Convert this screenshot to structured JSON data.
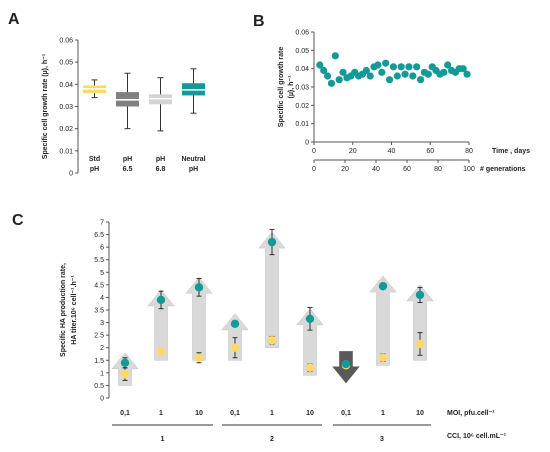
{
  "panel_labels": {
    "a": "A",
    "b": "B",
    "c": "C"
  },
  "chart_data": [
    {
      "type": "box",
      "panel": "A",
      "ylabel": "Specific cell growth rate (µ), h⁻¹",
      "ylim": [
        0,
        0.06
      ],
      "yticks": [
        "0",
        "0.01",
        "0.02",
        "0.03",
        "0.04",
        "0.05",
        "0.06"
      ],
      "categories": [
        {
          "line1": "Std",
          "line2": "pH"
        },
        {
          "line1": "pH",
          "line2": "6.5"
        },
        {
          "line1": "pH",
          "line2": "6.8"
        },
        {
          "line1": "Neutral",
          "line2": "pH"
        }
      ],
      "boxes": [
        {
          "min": 0.034,
          "q1": 0.036,
          "median": 0.038,
          "q3": 0.0395,
          "max": 0.042,
          "color": "#FFD966"
        },
        {
          "min": 0.02,
          "q1": 0.03,
          "median": 0.033,
          "q3": 0.0365,
          "max": 0.045,
          "color": "#808080"
        },
        {
          "min": 0.019,
          "q1": 0.031,
          "median": 0.0335,
          "q3": 0.0355,
          "max": 0.043,
          "color": "#D3D3D3"
        },
        {
          "min": 0.027,
          "q1": 0.035,
          "median": 0.0375,
          "q3": 0.0405,
          "max": 0.047,
          "color": "#139A96"
        }
      ]
    },
    {
      "type": "scatter",
      "panel": "B",
      "ylabel_line1": "Specific cell growth rate",
      "ylabel_line2": "(µ), h⁻¹",
      "ylim": [
        0,
        0.06
      ],
      "yticks": [
        "0",
        "0.01",
        "0.02",
        "0.03",
        "0.04",
        "0.05",
        "0.06"
      ],
      "xlim": [
        0,
        80
      ],
      "xticks": [
        "0",
        "20",
        "40",
        "60",
        "80"
      ],
      "xlabel": "Time , days",
      "x2lim": [
        0,
        100
      ],
      "x2ticks": [
        "0",
        "20",
        "40",
        "60",
        "80",
        "100"
      ],
      "x2label": "# generations",
      "color": "#139A96",
      "points": [
        {
          "x": 3,
          "y": 0.042
        },
        {
          "x": 5,
          "y": 0.039
        },
        {
          "x": 7,
          "y": 0.036
        },
        {
          "x": 9,
          "y": 0.032
        },
        {
          "x": 11,
          "y": 0.047
        },
        {
          "x": 13,
          "y": 0.034
        },
        {
          "x": 15,
          "y": 0.038
        },
        {
          "x": 17,
          "y": 0.035
        },
        {
          "x": 19,
          "y": 0.036
        },
        {
          "x": 21,
          "y": 0.038
        },
        {
          "x": 23,
          "y": 0.036
        },
        {
          "x": 25,
          "y": 0.037
        },
        {
          "x": 27,
          "y": 0.039
        },
        {
          "x": 29,
          "y": 0.036
        },
        {
          "x": 31,
          "y": 0.041
        },
        {
          "x": 33,
          "y": 0.042
        },
        {
          "x": 35,
          "y": 0.038
        },
        {
          "x": 37,
          "y": 0.043
        },
        {
          "x": 39,
          "y": 0.034
        },
        {
          "x": 41,
          "y": 0.041
        },
        {
          "x": 43,
          "y": 0.036
        },
        {
          "x": 45,
          "y": 0.041
        },
        {
          "x": 47,
          "y": 0.037
        },
        {
          "x": 49,
          "y": 0.041
        },
        {
          "x": 51,
          "y": 0.036
        },
        {
          "x": 53,
          "y": 0.041
        },
        {
          "x": 55,
          "y": 0.034
        },
        {
          "x": 57,
          "y": 0.038
        },
        {
          "x": 59,
          "y": 0.037
        },
        {
          "x": 61,
          "y": 0.041
        },
        {
          "x": 63,
          "y": 0.039
        },
        {
          "x": 65,
          "y": 0.037
        },
        {
          "x": 67,
          "y": 0.038
        },
        {
          "x": 69,
          "y": 0.042
        },
        {
          "x": 71,
          "y": 0.039
        },
        {
          "x": 73,
          "y": 0.038
        },
        {
          "x": 75,
          "y": 0.04
        },
        {
          "x": 77,
          "y": 0.04
        },
        {
          "x": 79,
          "y": 0.037
        }
      ]
    },
    {
      "type": "scatter",
      "panel": "C",
      "ylabel_line1": "Specific HA production rate,",
      "ylabel_line2": "HA titer.10⁶ cell⁻¹.h⁻¹",
      "ylim": [
        0,
        7
      ],
      "yticks": [
        "0",
        "0.5",
        "1",
        "1.5",
        "2",
        "2.5",
        "3",
        "3.5",
        "4",
        "4.5",
        "5",
        "5.5",
        "6",
        "6.5",
        "7"
      ],
      "categories": [
        "0,1",
        "1",
        "10",
        "0,1",
        "1",
        "10",
        "0,1",
        "1",
        "10"
      ],
      "groups": [
        "1",
        "2",
        "3"
      ],
      "xlabel_moi": "MOI, pfu.cell⁻¹",
      "xlabel_cci": "CCI, 10⁶ cell.mL⁻¹",
      "series": [
        {
          "values": [
            1.4,
            3.9,
            4.4,
            2.95,
            6.2,
            3.15,
            1.35,
            4.45,
            4.1
          ],
          "errors": [
            0.2,
            0.35,
            0.35,
            0.1,
            0.5,
            0.45,
            0.0,
            0.0,
            0.3
          ],
          "color": "#139A96"
        },
        {
          "values": [
            0.95,
            1.85,
            1.6,
            2.0,
            2.3,
            1.2,
            1.3,
            1.6,
            2.15
          ],
          "errors": [
            0.25,
            0.1,
            0.2,
            0.4,
            0.15,
            0.15,
            0.0,
            0.15,
            0.45
          ],
          "color": "#FFD966"
        }
      ],
      "arrows": [
        {
          "from": 0.5,
          "to": 1.4,
          "direction": "up"
        },
        {
          "from": 1.5,
          "to": 3.9,
          "direction": "up"
        },
        {
          "from": 1.5,
          "to": 4.4,
          "direction": "up"
        },
        {
          "from": 1.5,
          "to": 2.95,
          "direction": "up"
        },
        {
          "from": 2.0,
          "to": 6.2,
          "direction": "up"
        },
        {
          "from": 0.9,
          "to": 3.15,
          "direction": "up"
        },
        {
          "from": 1.85,
          "to": 1.0,
          "direction": "down"
        },
        {
          "from": 1.3,
          "to": 4.45,
          "direction": "up"
        },
        {
          "from": 1.5,
          "to": 4.1,
          "direction": "up"
        }
      ]
    }
  ]
}
